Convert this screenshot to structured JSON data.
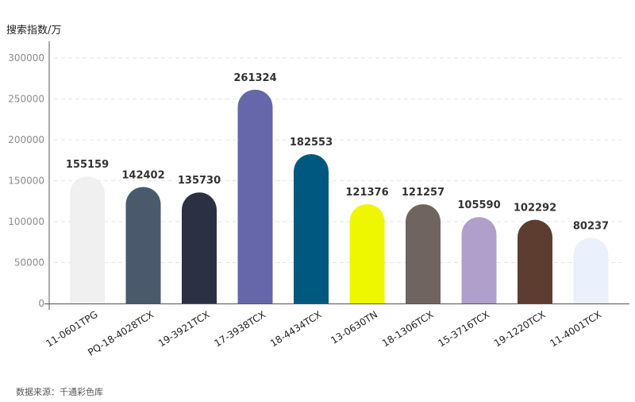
{
  "unit_label": "搜索指数/万",
  "source_label": "数据来源：千通彩色库",
  "chart_data": {
    "type": "bar",
    "categories": [
      "11-0601TPG",
      "PQ-18-4028TCX",
      "19-3921TCX",
      "17-3938TCX",
      "18-4434TCX",
      "13-0630TN",
      "18-1306TCX",
      "15-3716TCX",
      "19-1220TCX",
      "11-4001TCX"
    ],
    "values": [
      155159,
      142402,
      135730,
      261324,
      182553,
      121376,
      121257,
      105590,
      102292,
      80237
    ],
    "colors": [
      "#eff0ef",
      "#4a5a6c",
      "#2b3044",
      "#6666ab",
      "#005880",
      "#eef700",
      "#6f6460",
      "#b09fca",
      "#5e3d31",
      "#ebf0fd"
    ],
    "ylim": [
      0,
      300000
    ],
    "yticks": [
      0,
      50000,
      100000,
      150000,
      200000,
      250000,
      300000
    ],
    "grid": true
  }
}
